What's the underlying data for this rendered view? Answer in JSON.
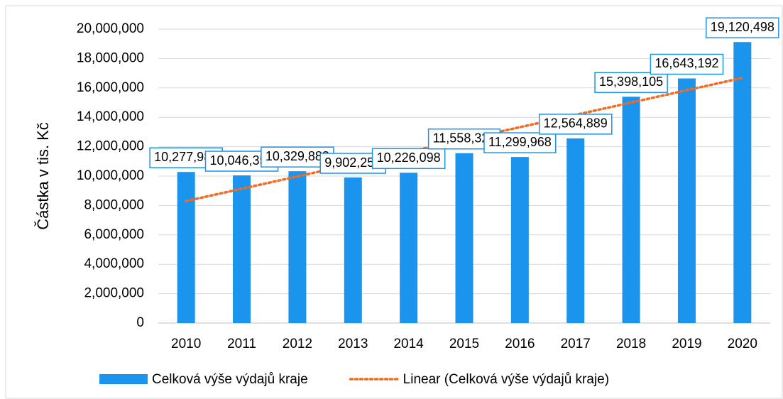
{
  "chart_data": {
    "type": "bar",
    "categories": [
      "2010",
      "2011",
      "2012",
      "2013",
      "2014",
      "2015",
      "2016",
      "2017",
      "2018",
      "2019",
      "2020"
    ],
    "y_axis_label": "Částka v tis. Kč",
    "ylim": [
      0,
      20000000
    ],
    "yticks": [
      {
        "value": 0,
        "label": "0"
      },
      {
        "value": 2000000,
        "label": "2,000,000"
      },
      {
        "value": 4000000,
        "label": "4,000,000"
      },
      {
        "value": 6000000,
        "label": "6,000,000"
      },
      {
        "value": 8000000,
        "label": "8,000,000"
      },
      {
        "value": 10000000,
        "label": "10,000,000"
      },
      {
        "value": 12000000,
        "label": "12,000,000"
      },
      {
        "value": 14000000,
        "label": "14,000,000"
      },
      {
        "value": 16000000,
        "label": "16,000,000"
      },
      {
        "value": 18000000,
        "label": "18,000,000"
      },
      {
        "value": 20000000,
        "label": "20,000,000"
      }
    ],
    "grid": true,
    "legend": "bottom",
    "series": [
      {
        "name": "Celková výše výdajů kraje",
        "color": "#1a94ec",
        "type": "bar",
        "values": [
          10277988,
          10046353,
          10329883,
          9902252,
          10226098,
          11558325,
          11299968,
          12564889,
          15398105,
          16643192,
          19120498
        ],
        "value_labels": [
          "10,277,988",
          "10,046,353",
          "10,329,883",
          "9,902,252",
          "10,226,098",
          "11,558,325",
          "11,299,968",
          "12,564,889",
          "15,398,105",
          "16,643,192",
          "19,120,498"
        ]
      },
      {
        "name": "Linear (Celková výše výdajů kraje)",
        "color": "#f26b21",
        "type": "line",
        "dotted": true,
        "values": [
          8300000,
          9138000,
          9976000,
          10814000,
          11652000,
          12490000,
          13328000,
          14166000,
          15004000,
          15842000,
          16680000
        ]
      }
    ]
  }
}
